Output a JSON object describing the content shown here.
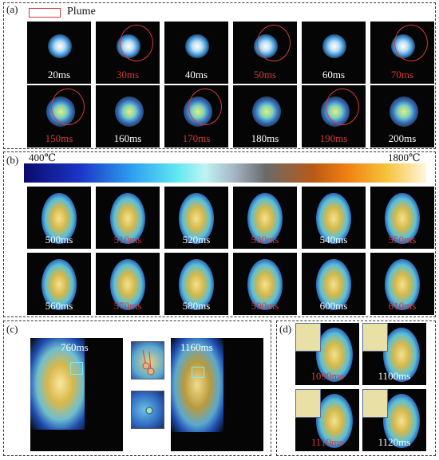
{
  "legend": {
    "plume_label": "Plume",
    "plume_color": "#d23a3a"
  },
  "panel_a": {
    "label": "(a)",
    "row1": [
      {
        "t": "20ms",
        "c": "white"
      },
      {
        "t": "30ms",
        "c": "red"
      },
      {
        "t": "40ms",
        "c": "white"
      },
      {
        "t": "50ms",
        "c": "red"
      },
      {
        "t": "60ms",
        "c": "white"
      },
      {
        "t": "70ms",
        "c": "red"
      }
    ],
    "row2": [
      {
        "t": "150ms",
        "c": "red"
      },
      {
        "t": "160ms",
        "c": "white"
      },
      {
        "t": "170ms",
        "c": "red"
      },
      {
        "t": "180ms",
        "c": "white"
      },
      {
        "t": "190ms",
        "c": "red"
      },
      {
        "t": "200ms",
        "c": "white"
      }
    ]
  },
  "panel_b": {
    "label": "(b)",
    "colorbar_min": "400℃",
    "colorbar_max": "1800℃",
    "row1": [
      {
        "t": "500ms",
        "c": "white"
      },
      {
        "t": "510ms",
        "c": "red"
      },
      {
        "t": "520ms",
        "c": "white"
      },
      {
        "t": "530ms",
        "c": "red"
      },
      {
        "t": "540ms",
        "c": "white"
      },
      {
        "t": "550ms",
        "c": "red"
      }
    ],
    "row2": [
      {
        "t": "560ms",
        "c": "white"
      },
      {
        "t": "570ms",
        "c": "red"
      },
      {
        "t": "580ms",
        "c": "white"
      },
      {
        "t": "590ms",
        "c": "red"
      },
      {
        "t": "600ms",
        "c": "white"
      },
      {
        "t": "610ms",
        "c": "red"
      }
    ]
  },
  "panel_c": {
    "label": "(c)",
    "left_time": "760ms",
    "right_time": "1160ms"
  },
  "panel_d": {
    "label": "(d)",
    "frames": [
      {
        "t": "1090ms",
        "c": "red"
      },
      {
        "t": "1100ms",
        "c": "white"
      },
      {
        "t": "1110ms",
        "c": "red"
      },
      {
        "t": "1120ms",
        "c": "white"
      }
    ]
  },
  "colors": {
    "red_label": "#d23a3a",
    "white_label": "#ffffff",
    "frame_bg": "#050505"
  }
}
